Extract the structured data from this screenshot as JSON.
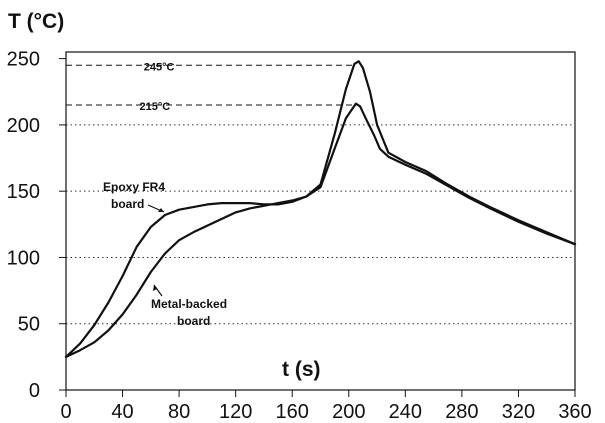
{
  "chart_data": {
    "type": "line",
    "title": "",
    "ylabel": "T (°C)",
    "xlabel": "t (s)",
    "xlim": [
      0,
      360
    ],
    "ylim": [
      0,
      255
    ],
    "xticks": [
      0,
      40,
      80,
      120,
      160,
      200,
      240,
      280,
      320,
      360
    ],
    "yticks": [
      0,
      50,
      100,
      150,
      200,
      250
    ],
    "series": [
      {
        "name": "Epoxy FR4 board",
        "points": [
          [
            0,
            25
          ],
          [
            10,
            35
          ],
          [
            20,
            49
          ],
          [
            30,
            66
          ],
          [
            40,
            86
          ],
          [
            50,
            108
          ],
          [
            60,
            123
          ],
          [
            70,
            132
          ],
          [
            80,
            136
          ],
          [
            90,
            138
          ],
          [
            100,
            140
          ],
          [
            110,
            141
          ],
          [
            120,
            141
          ],
          [
            130,
            141
          ],
          [
            140,
            140
          ],
          [
            150,
            140
          ],
          [
            160,
            142
          ],
          [
            170,
            146
          ],
          [
            180,
            153
          ],
          [
            190,
            182
          ],
          [
            198,
            205
          ],
          [
            205,
            216
          ],
          [
            208,
            214
          ],
          [
            212,
            205
          ],
          [
            218,
            192
          ],
          [
            222,
            182
          ],
          [
            228,
            176
          ],
          [
            240,
            170
          ],
          [
            255,
            163
          ],
          [
            270,
            154
          ],
          [
            285,
            145
          ],
          [
            300,
            137
          ],
          [
            320,
            127
          ],
          [
            340,
            118
          ],
          [
            360,
            110
          ]
        ]
      },
      {
        "name": "Metal-backed board",
        "points": [
          [
            0,
            25
          ],
          [
            10,
            30
          ],
          [
            20,
            36
          ],
          [
            30,
            45
          ],
          [
            40,
            57
          ],
          [
            50,
            72
          ],
          [
            60,
            89
          ],
          [
            70,
            103
          ],
          [
            80,
            113
          ],
          [
            90,
            119
          ],
          [
            100,
            124
          ],
          [
            110,
            129
          ],
          [
            120,
            134
          ],
          [
            130,
            137
          ],
          [
            140,
            139
          ],
          [
            150,
            141
          ],
          [
            160,
            143
          ],
          [
            170,
            146
          ],
          [
            180,
            155
          ],
          [
            190,
            193
          ],
          [
            198,
            227
          ],
          [
            204,
            246
          ],
          [
            207,
            248
          ],
          [
            210,
            243
          ],
          [
            215,
            225
          ],
          [
            220,
            200
          ],
          [
            228,
            179
          ],
          [
            240,
            172
          ],
          [
            255,
            165
          ],
          [
            270,
            155
          ],
          [
            285,
            146
          ],
          [
            300,
            138
          ],
          [
            320,
            128
          ],
          [
            340,
            119
          ],
          [
            360,
            110
          ]
        ]
      }
    ],
    "reference_lines": [
      {
        "value": 245,
        "label": "245°C",
        "style": "dashed"
      },
      {
        "value": 215,
        "label": "215°C",
        "style": "dashed"
      }
    ],
    "gridlines": [
      50,
      100,
      150,
      200
    ],
    "annotations": [
      {
        "text_lines": [
          "Epoxy FR4",
          "board"
        ]
      },
      {
        "text_lines": [
          "Metal-backed",
          "board"
        ]
      }
    ]
  }
}
